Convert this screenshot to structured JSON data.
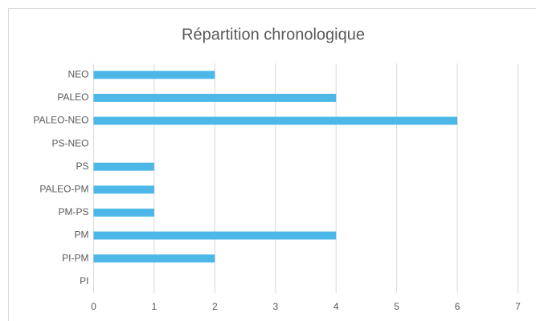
{
  "chart_data": {
    "type": "bar",
    "orientation": "horizontal",
    "title": "Répartition chronologique",
    "categories": [
      "NEO",
      "PALEO",
      "PALEO-NEO",
      "PS-NEO",
      "PS",
      "PALEO-PM",
      "PM-PS",
      "PM",
      "PI-PM",
      "PI"
    ],
    "values": [
      2,
      4,
      6,
      0,
      1,
      1,
      1,
      4,
      2,
      0
    ],
    "color": "#4db8e8",
    "xlim": [
      0,
      7
    ],
    "xticks": [
      0,
      1,
      2,
      3,
      4,
      5,
      6,
      7
    ],
    "grid": true
  }
}
